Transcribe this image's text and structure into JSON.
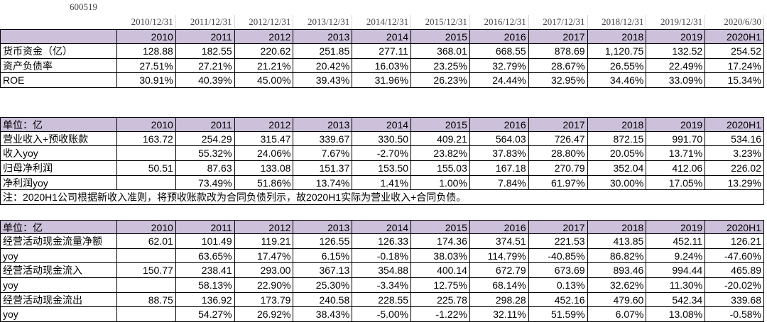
{
  "code": "600519",
  "dates": [
    "2010/12/31",
    "2011/12/31",
    "2012/12/31",
    "2013/12/31",
    "2014/12/31",
    "2015/12/31",
    "2016/12/31",
    "2017/12/31",
    "2018/12/31",
    "2019/12/31",
    "2020/6/30"
  ],
  "tables": [
    {
      "years": [
        "2010",
        "2011",
        "2012",
        "2013",
        "2014",
        "2015",
        "2016",
        "2017",
        "2018",
        "2019",
        "2020H1"
      ],
      "rows": [
        {
          "label": "货币资金（亿）",
          "cells": [
            "128.88",
            "182.55",
            "220.62",
            "251.85",
            "277.11",
            "368.01",
            "668.55",
            "878.69",
            "1,120.75",
            "132.52",
            "254.52"
          ]
        },
        {
          "label": "资产负债率",
          "cells": [
            "27.51%",
            "27.21%",
            "21.21%",
            "20.42%",
            "16.03%",
            "23.25%",
            "32.79%",
            "28.67%",
            "26.55%",
            "22.49%",
            "17.24%"
          ]
        },
        {
          "label": "ROE",
          "cells": [
            "30.91%",
            "40.39%",
            "45.00%",
            "39.43%",
            "31.96%",
            "26.23%",
            "24.44%",
            "32.95%",
            "34.46%",
            "33.09%",
            "15.34%"
          ]
        }
      ]
    },
    {
      "unit": "单位：亿",
      "years": [
        "2010",
        "2011",
        "2012",
        "2013",
        "2014",
        "2015",
        "2016",
        "2017",
        "2018",
        "2019",
        "2020H1"
      ],
      "rows": [
        {
          "label": "营业收入+预收账款",
          "cells": [
            "163.72",
            "254.29",
            "315.47",
            "339.67",
            "330.50",
            "409.21",
            "564.03",
            "726.47",
            "872.15",
            "991.70",
            "534.16"
          ]
        },
        {
          "label": "收入yoy",
          "cells": [
            null,
            "55.32%",
            "24.06%",
            "7.67%",
            "-2.70%",
            "23.82%",
            "37.83%",
            "28.80%",
            "20.05%",
            "13.71%",
            "3.23%"
          ]
        },
        {
          "label": "归母净利润",
          "cells": [
            "50.51",
            "87.63",
            "133.08",
            "151.37",
            "153.50",
            "155.03",
            "167.18",
            "270.79",
            "352.04",
            "412.06",
            "226.02"
          ]
        },
        {
          "label": "净利润yoy",
          "cells": [
            null,
            "73.49%",
            "51.86%",
            "13.74%",
            "1.41%",
            "1.00%",
            "7.84%",
            "61.97%",
            "30.00%",
            "17.05%",
            "13.29%"
          ]
        }
      ],
      "note": "注：2020H1公司根据新收入准则，将预收账款改为合同负债列示，故2020H1实际为营业收入+合同负债。"
    },
    {
      "unit": "单位：亿",
      "years": [
        "2010",
        "2011",
        "2012",
        "2013",
        "2014",
        "2015",
        "2016",
        "2017",
        "2018",
        "2019",
        "2020H1"
      ],
      "rows": [
        {
          "label": "经营活动现金流量净额",
          "cells": [
            "62.01",
            "101.49",
            "119.21",
            "126.55",
            "126.33",
            "174.36",
            "374.51",
            "221.53",
            "413.85",
            "452.11",
            "126.21"
          ]
        },
        {
          "label": "yoy",
          "cells": [
            null,
            "63.65%",
            "17.47%",
            "6.15%",
            "-0.18%",
            "38.03%",
            "114.79%",
            "-40.85%",
            "86.82%",
            "9.24%",
            "-47.60%"
          ]
        },
        {
          "label": "经营活动现金流入",
          "cells": [
            "150.77",
            "238.41",
            "293.00",
            "367.13",
            "354.88",
            "400.14",
            "672.79",
            "673.69",
            "893.46",
            "994.44",
            "465.89"
          ]
        },
        {
          "label": "yoy",
          "cells": [
            null,
            "58.13%",
            "22.90%",
            "25.30%",
            "-3.34%",
            "12.75%",
            "68.14%",
            "0.13%",
            "32.62%",
            "11.30%",
            "-20.02%"
          ]
        },
        {
          "label": "经营活动现金流出",
          "cells": [
            "88.75",
            "136.92",
            "173.79",
            "240.58",
            "228.55",
            "225.78",
            "298.28",
            "452.16",
            "479.60",
            "542.34",
            "339.68"
          ]
        },
        {
          "label": "yoy",
          "cells": [
            null,
            "54.27%",
            "26.92%",
            "38.43%",
            "-5.00%",
            "-1.22%",
            "32.11%",
            "51.59%",
            "6.07%",
            "13.08%",
            "-0.58%"
          ]
        }
      ]
    }
  ]
}
